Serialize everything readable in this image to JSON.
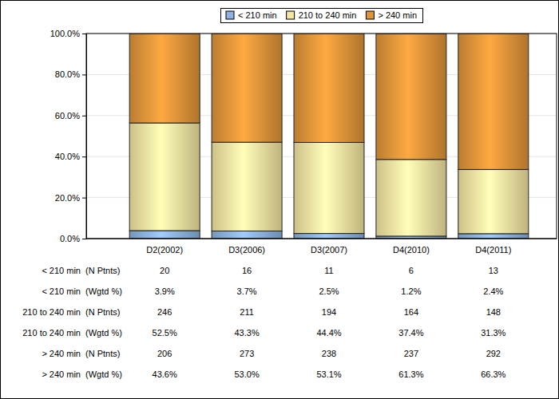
{
  "chart_data": {
    "type": "bar",
    "stacked": true,
    "grid": true,
    "legend": "top",
    "categories": [
      "D2(2002)",
      "D3(2006)",
      "D3(2007)",
      "D4(2010)",
      "D4(2011)"
    ],
    "ylim": [
      0,
      100
    ],
    "yticks": [
      {
        "value": 0,
        "label": "0.0%"
      },
      {
        "value": 20,
        "label": "20.0%"
      },
      {
        "value": 40,
        "label": "40.0%"
      },
      {
        "value": 60,
        "label": "60.0%"
      },
      {
        "value": 80,
        "label": "80.0%"
      },
      {
        "value": 100,
        "label": "100.0%"
      }
    ],
    "table_row_labels": [
      "(N Ptnts)",
      "(Wgtd %)"
    ],
    "series": [
      {
        "name": "< 210 min",
        "color": "#8db4e0",
        "values": [
          3.9,
          3.7,
          2.5,
          1.2,
          2.4
        ],
        "value_labels": [
          "3.9%",
          "3.7%",
          "2.5%",
          "1.2%",
          "2.4%"
        ],
        "n_patients": [
          20,
          16,
          11,
          6,
          13
        ]
      },
      {
        "name": "210 to 240 min",
        "color": "#f6e6a2",
        "values": [
          52.5,
          43.3,
          44.4,
          37.4,
          31.3
        ],
        "value_labels": [
          "52.5%",
          "43.3%",
          "44.4%",
          "37.4%",
          "31.3%"
        ],
        "n_patients": [
          246,
          211,
          194,
          164,
          148
        ]
      },
      {
        "name": "> 240 min",
        "color": "#e0953a",
        "values": [
          43.6,
          53.0,
          53.1,
          61.3,
          66.3
        ],
        "value_labels": [
          "43.6%",
          "53.0%",
          "53.1%",
          "61.3%",
          "66.3%"
        ],
        "n_patients": [
          206,
          273,
          238,
          237,
          292
        ]
      }
    ]
  }
}
